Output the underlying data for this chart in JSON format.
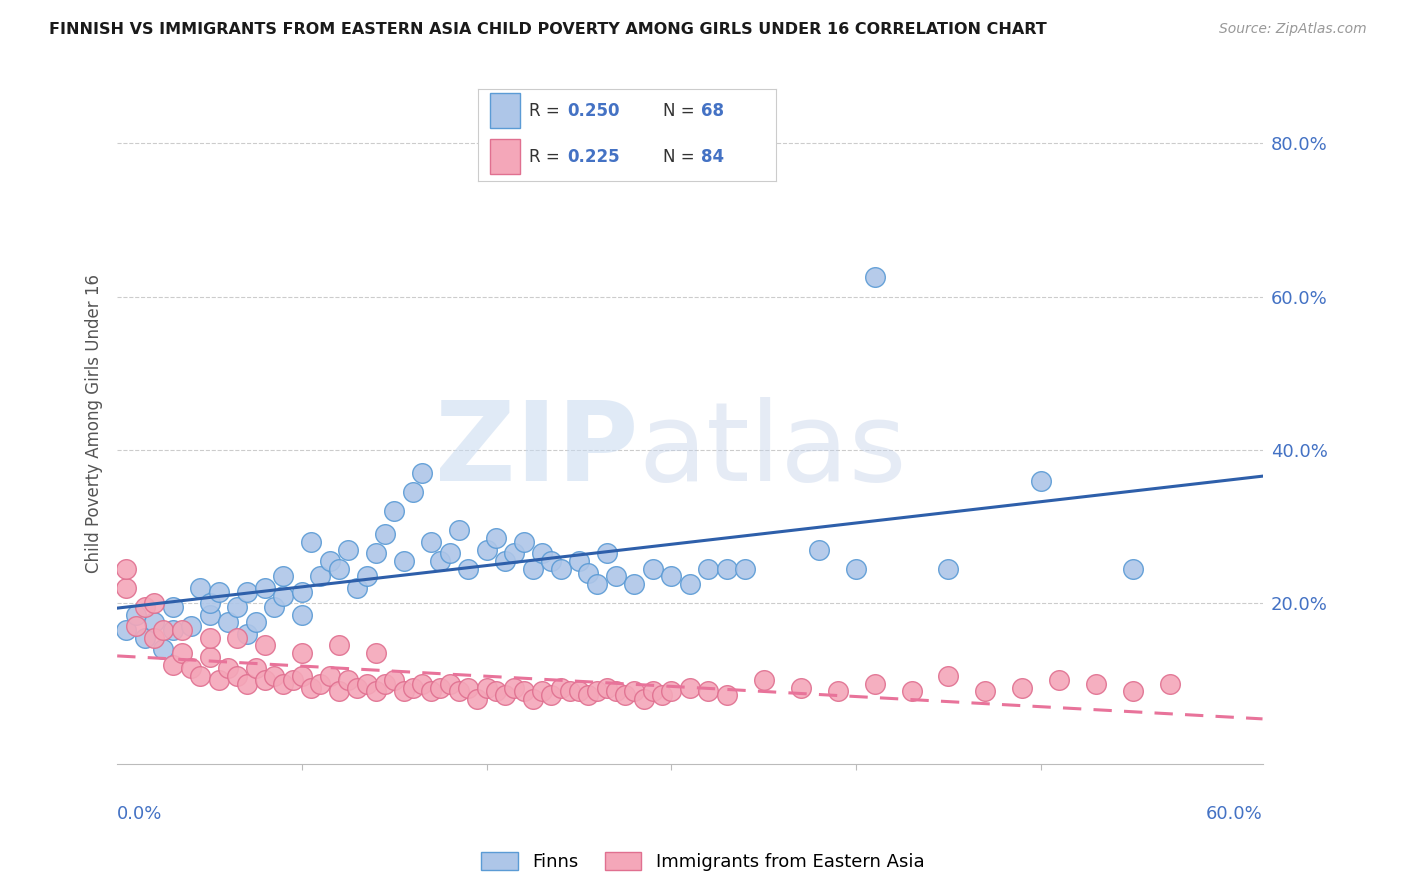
{
  "title": "FINNISH VS IMMIGRANTS FROM EASTERN ASIA CHILD POVERTY AMONG GIRLS UNDER 16 CORRELATION CHART",
  "source": "Source: ZipAtlas.com",
  "ylabel": "Child Poverty Among Girls Under 16",
  "xlim": [
    0.0,
    0.62
  ],
  "ylim": [
    -0.01,
    0.88
  ],
  "ytick_vals": [
    0.2,
    0.4,
    0.6,
    0.8
  ],
  "ytick_labels": [
    "20.0%",
    "40.0%",
    "60.0%",
    "80.0%"
  ],
  "legend_label_finns": "Finns",
  "legend_label_immigrants": "Immigrants from Eastern Asia",
  "color_finns_face": "#aec6e8",
  "color_finns_edge": "#5b9bd5",
  "color_immigrants_face": "#f4a7b9",
  "color_immigrants_edge": "#e07090",
  "color_line_finns": "#2e5faa",
  "color_line_immigrants": "#e8739a",
  "color_text_blue": "#4472c4",
  "finns_x": [
    0.005,
    0.01,
    0.015,
    0.02,
    0.025,
    0.03,
    0.03,
    0.04,
    0.045,
    0.05,
    0.05,
    0.055,
    0.06,
    0.065,
    0.07,
    0.07,
    0.075,
    0.08,
    0.085,
    0.09,
    0.09,
    0.1,
    0.1,
    0.105,
    0.11,
    0.115,
    0.12,
    0.125,
    0.13,
    0.135,
    0.14,
    0.145,
    0.15,
    0.155,
    0.16,
    0.165,
    0.17,
    0.175,
    0.18,
    0.185,
    0.19,
    0.2,
    0.205,
    0.21,
    0.215,
    0.22,
    0.225,
    0.23,
    0.235,
    0.24,
    0.25,
    0.255,
    0.26,
    0.265,
    0.27,
    0.28,
    0.29,
    0.3,
    0.31,
    0.32,
    0.33,
    0.34,
    0.38,
    0.4,
    0.41,
    0.45,
    0.5,
    0.55
  ],
  "finns_y": [
    0.165,
    0.185,
    0.155,
    0.175,
    0.14,
    0.165,
    0.195,
    0.17,
    0.22,
    0.185,
    0.2,
    0.215,
    0.175,
    0.195,
    0.16,
    0.215,
    0.175,
    0.22,
    0.195,
    0.21,
    0.235,
    0.185,
    0.215,
    0.28,
    0.235,
    0.255,
    0.245,
    0.27,
    0.22,
    0.235,
    0.265,
    0.29,
    0.32,
    0.255,
    0.345,
    0.37,
    0.28,
    0.255,
    0.265,
    0.295,
    0.245,
    0.27,
    0.285,
    0.255,
    0.265,
    0.28,
    0.245,
    0.265,
    0.255,
    0.245,
    0.255,
    0.24,
    0.225,
    0.265,
    0.235,
    0.225,
    0.245,
    0.235,
    0.225,
    0.245,
    0.245,
    0.245,
    0.27,
    0.245,
    0.625,
    0.245,
    0.36,
    0.245
  ],
  "immigrants_x": [
    0.005,
    0.01,
    0.015,
    0.02,
    0.025,
    0.03,
    0.035,
    0.04,
    0.045,
    0.05,
    0.055,
    0.06,
    0.065,
    0.07,
    0.075,
    0.08,
    0.085,
    0.09,
    0.095,
    0.1,
    0.105,
    0.11,
    0.115,
    0.12,
    0.125,
    0.13,
    0.135,
    0.14,
    0.145,
    0.15,
    0.155,
    0.16,
    0.165,
    0.17,
    0.175,
    0.18,
    0.185,
    0.19,
    0.195,
    0.2,
    0.205,
    0.21,
    0.215,
    0.22,
    0.225,
    0.23,
    0.235,
    0.24,
    0.245,
    0.25,
    0.255,
    0.26,
    0.265,
    0.27,
    0.275,
    0.28,
    0.285,
    0.29,
    0.295,
    0.3,
    0.31,
    0.32,
    0.33,
    0.35,
    0.37,
    0.39,
    0.41,
    0.43,
    0.45,
    0.47,
    0.49,
    0.51,
    0.53,
    0.55,
    0.57,
    0.005,
    0.02,
    0.035,
    0.05,
    0.065,
    0.08,
    0.1,
    0.12,
    0.14
  ],
  "immigrants_y": [
    0.22,
    0.17,
    0.195,
    0.155,
    0.165,
    0.12,
    0.135,
    0.115,
    0.105,
    0.13,
    0.1,
    0.115,
    0.105,
    0.095,
    0.115,
    0.1,
    0.105,
    0.095,
    0.1,
    0.105,
    0.09,
    0.095,
    0.105,
    0.085,
    0.1,
    0.09,
    0.095,
    0.085,
    0.095,
    0.1,
    0.085,
    0.09,
    0.095,
    0.085,
    0.09,
    0.095,
    0.085,
    0.09,
    0.075,
    0.09,
    0.085,
    0.08,
    0.09,
    0.085,
    0.075,
    0.085,
    0.08,
    0.09,
    0.085,
    0.085,
    0.08,
    0.085,
    0.09,
    0.085,
    0.08,
    0.085,
    0.075,
    0.085,
    0.08,
    0.085,
    0.09,
    0.085,
    0.08,
    0.1,
    0.09,
    0.085,
    0.095,
    0.085,
    0.105,
    0.085,
    0.09,
    0.1,
    0.095,
    0.085,
    0.095,
    0.245,
    0.2,
    0.165,
    0.155,
    0.155,
    0.145,
    0.135,
    0.145,
    0.135
  ]
}
